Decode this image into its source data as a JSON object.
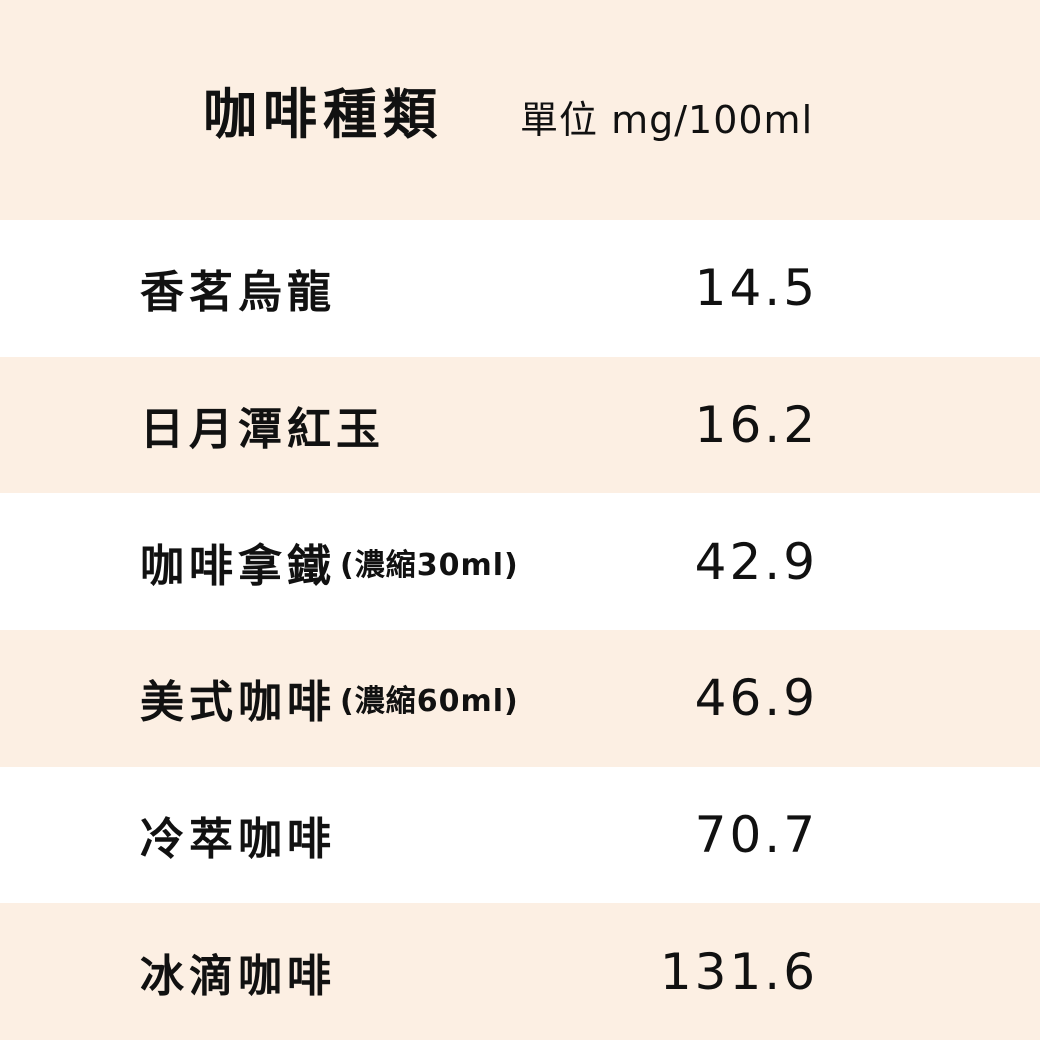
{
  "header": {
    "title": "咖啡種類",
    "unit": "單位 mg/100ml"
  },
  "colors": {
    "band": "#fcefe3",
    "white": "#ffffff"
  },
  "rows": [
    {
      "name": "香茗烏龍",
      "note": "",
      "value": "14.5"
    },
    {
      "name": "日月潭紅玉",
      "note": "",
      "value": "16.2"
    },
    {
      "name": "咖啡拿鐵",
      "note": "(濃縮30ml)",
      "value": "42.9"
    },
    {
      "name": "美式咖啡",
      "note": "(濃縮60ml)",
      "value": "46.9"
    },
    {
      "name": "冷萃咖啡",
      "note": "",
      "value": "70.7"
    },
    {
      "name": "冰滴咖啡",
      "note": "",
      "value": "131.6"
    }
  ]
}
